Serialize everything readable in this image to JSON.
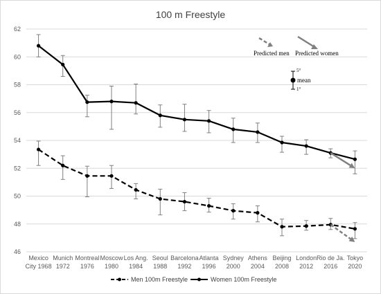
{
  "chart_data": {
    "type": "line",
    "title": "100 m Freestyle",
    "categories": [
      [
        "Mexico",
        "City 1968"
      ],
      [
        "Munich",
        "1972"
      ],
      [
        "Montreal",
        "1976"
      ],
      [
        "Moscow",
        "1980"
      ],
      [
        "Los Ang.",
        "1984"
      ],
      [
        "Seoul",
        "1988"
      ],
      [
        "Barcelona",
        "1992"
      ],
      [
        "Atlanta",
        "1996"
      ],
      [
        "Sydney",
        "2000"
      ],
      [
        "Athens",
        "2004"
      ],
      [
        "Beijing",
        "2008"
      ],
      [
        "London",
        "2012"
      ],
      [
        "Rio de Ja.",
        "2016"
      ],
      [
        "Tokyo",
        "2020"
      ]
    ],
    "ylim": [
      46,
      62
    ],
    "yticks": [
      46,
      48,
      50,
      52,
      54,
      56,
      58,
      60,
      62
    ],
    "grid": true,
    "legend_position": "bottom",
    "series": [
      {
        "name": "Men 100m Freestyle",
        "style": "dashed",
        "color": "#000000",
        "values": [
          53.35,
          52.2,
          51.45,
          51.45,
          50.45,
          49.8,
          49.6,
          49.3,
          48.95,
          48.8,
          47.8,
          47.85,
          47.95,
          47.65
        ],
        "err_low": [
          52.2,
          51.2,
          49.95,
          50.55,
          49.8,
          48.65,
          48.95,
          48.85,
          48.35,
          48.15,
          47.15,
          47.55,
          47.6,
          46.95
        ],
        "err_high": [
          53.95,
          52.9,
          52.15,
          52.2,
          50.9,
          50.5,
          50.25,
          49.85,
          49.45,
          49.3,
          48.35,
          48.25,
          48.4,
          48.1
        ]
      },
      {
        "name": "Women 100m Freestyle",
        "style": "solid",
        "color": "#000000",
        "values": [
          60.8,
          59.45,
          56.75,
          56.8,
          56.7,
          55.8,
          55.5,
          55.4,
          54.8,
          54.6,
          53.85,
          53.6,
          53.1,
          52.65
        ],
        "err_low": [
          60.0,
          58.6,
          55.7,
          54.8,
          55.9,
          54.95,
          54.65,
          54.55,
          53.85,
          53.85,
          53.15,
          53.0,
          52.75,
          51.6
        ],
        "err_high": [
          61.6,
          60.1,
          57.25,
          57.9,
          58.05,
          56.55,
          56.6,
          56.15,
          55.6,
          55.25,
          54.3,
          54.05,
          53.4,
          53.25
        ]
      }
    ],
    "predictions": [
      {
        "name": "Predicted men",
        "from_index": 12,
        "from_value": 47.95,
        "to_index": 13,
        "to_value": 46.7,
        "color": "#808080",
        "style": "dashed"
      },
      {
        "name": "Predicted women",
        "from_index": 12,
        "from_value": 53.1,
        "to_index": 13,
        "to_value": 52.0,
        "color": "#808080",
        "style": "solid"
      }
    ],
    "annotation": {
      "predicted_men_label": "Predicted men",
      "predicted_women_label": "Predicted women",
      "upper_label": "5°",
      "mean_label": "mean",
      "lower_label": "1°"
    }
  }
}
